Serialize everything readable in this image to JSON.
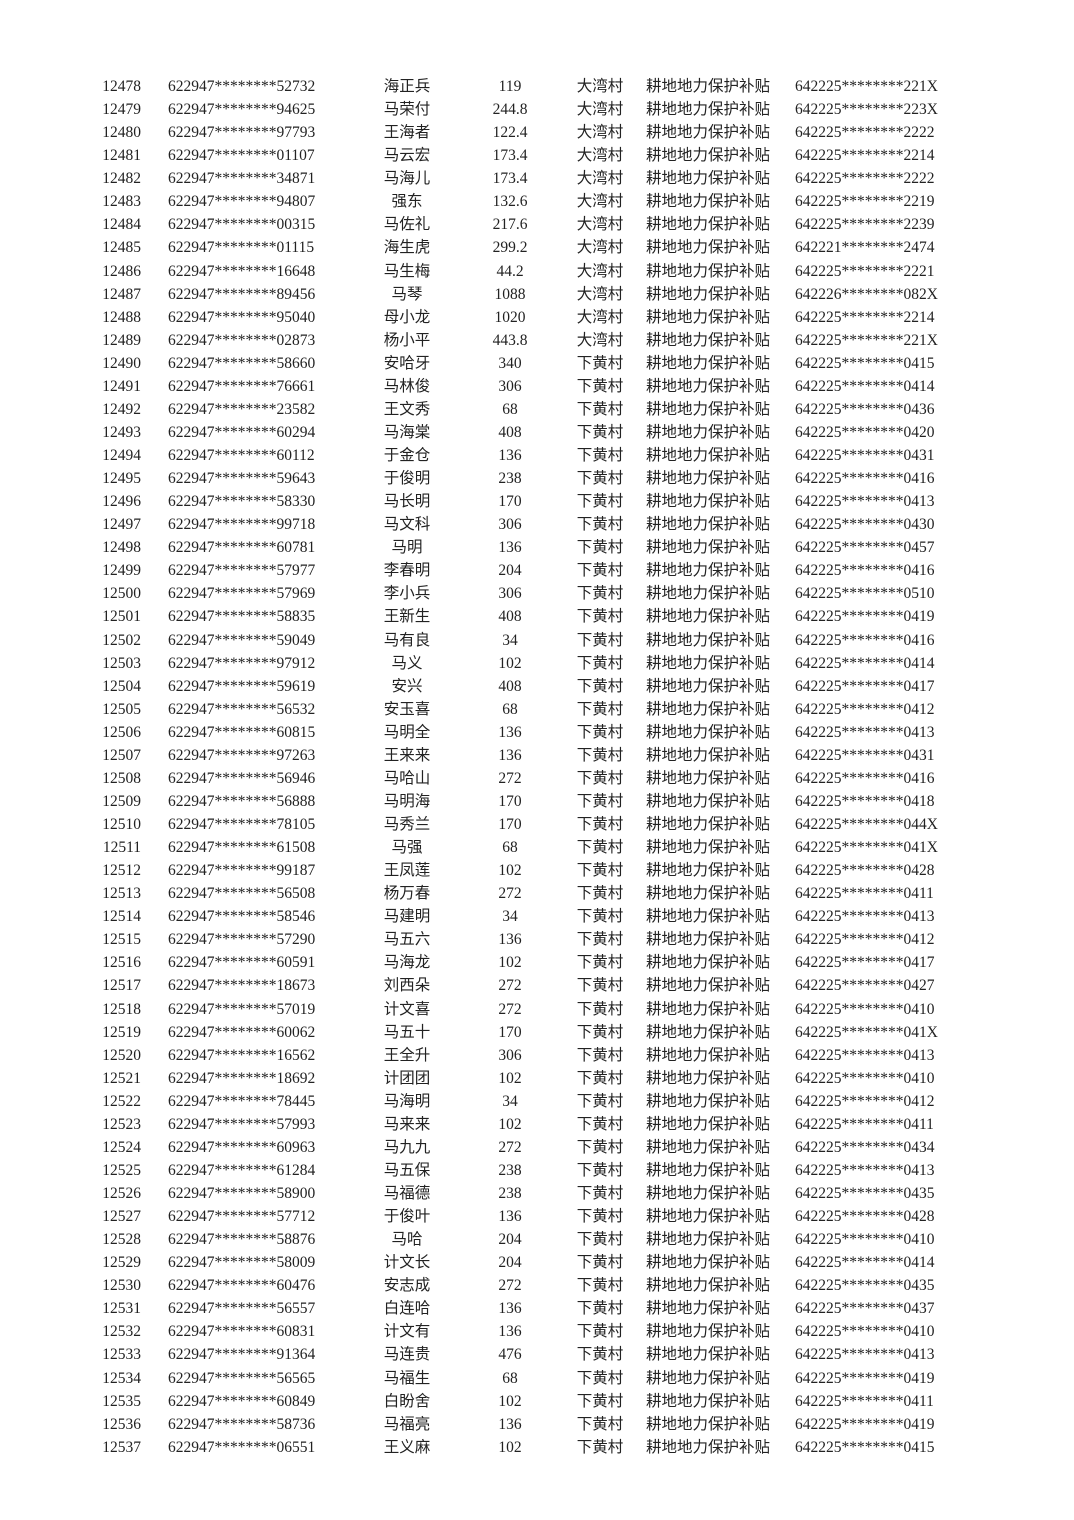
{
  "page": {
    "type": "subsidy-payment-list-document",
    "colors": {
      "background": "#ffffff",
      "text": "#222222"
    }
  },
  "table": {
    "columns": [
      {
        "key": 0,
        "name": "sequence-number",
        "class": "c0"
      },
      {
        "key": 1,
        "name": "citizen-id-masked",
        "class": "c1"
      },
      {
        "key": 2,
        "name": "person-name",
        "class": "c2"
      },
      {
        "key": 3,
        "name": "subsidy-amount",
        "class": "c3"
      },
      {
        "key": 4,
        "name": "village-name",
        "class": "c4"
      },
      {
        "key": 5,
        "name": "subsidy-type",
        "class": "c5"
      },
      {
        "key": 6,
        "name": "account-id-masked",
        "class": "c6"
      }
    ],
    "rows": [
      [
        12478,
        "622947********52732",
        "海正兵",
        119,
        "大湾村",
        "耕地地力保护补贴",
        "642225********221X"
      ],
      [
        12479,
        "622947********94625",
        "马荣付",
        244.8,
        "大湾村",
        "耕地地力保护补贴",
        "642225********223X"
      ],
      [
        12480,
        "622947********97793",
        "王海者",
        122.4,
        "大湾村",
        "耕地地力保护补贴",
        "642225********2222"
      ],
      [
        12481,
        "622947********01107",
        "马云宏",
        173.4,
        "大湾村",
        "耕地地力保护补贴",
        "642225********2214"
      ],
      [
        12482,
        "622947********34871",
        "马海儿",
        173.4,
        "大湾村",
        "耕地地力保护补贴",
        "642225********2222"
      ],
      [
        12483,
        "622947********94807",
        "强东",
        132.6,
        "大湾村",
        "耕地地力保护补贴",
        "642225********2219"
      ],
      [
        12484,
        "622947********00315",
        "马佐礼",
        217.6,
        "大湾村",
        "耕地地力保护补贴",
        "642225********2239"
      ],
      [
        12485,
        "622947********01115",
        "海生虎",
        299.2,
        "大湾村",
        "耕地地力保护补贴",
        "642221********2474"
      ],
      [
        12486,
        "622947********16648",
        "马生梅",
        44.2,
        "大湾村",
        "耕地地力保护补贴",
        "642225********2221"
      ],
      [
        12487,
        "622947********89456",
        "马琴",
        1088,
        "大湾村",
        "耕地地力保护补贴",
        "642226********082X"
      ],
      [
        12488,
        "622947********95040",
        "母小龙",
        1020,
        "大湾村",
        "耕地地力保护补贴",
        "642225********2214"
      ],
      [
        12489,
        "622947********02873",
        "杨小平",
        443.8,
        "大湾村",
        "耕地地力保护补贴",
        "642225********221X"
      ],
      [
        12490,
        "622947********58660",
        "安哈牙",
        340,
        "下黄村",
        "耕地地力保护补贴",
        "642225********0415"
      ],
      [
        12491,
        "622947********76661",
        "马林俊",
        306,
        "下黄村",
        "耕地地力保护补贴",
        "642225********0414"
      ],
      [
        12492,
        "622947********23582",
        "王文秀",
        68,
        "下黄村",
        "耕地地力保护补贴",
        "642225********0436"
      ],
      [
        12493,
        "622947********60294",
        "马海棠",
        408,
        "下黄村",
        "耕地地力保护补贴",
        "642225********0420"
      ],
      [
        12494,
        "622947********60112",
        "于金仓",
        136,
        "下黄村",
        "耕地地力保护补贴",
        "642225********0431"
      ],
      [
        12495,
        "622947********59643",
        "于俊明",
        238,
        "下黄村",
        "耕地地力保护补贴",
        "642225********0416"
      ],
      [
        12496,
        "622947********58330",
        "马长明",
        170,
        "下黄村",
        "耕地地力保护补贴",
        "642225********0413"
      ],
      [
        12497,
        "622947********99718",
        "马文科",
        306,
        "下黄村",
        "耕地地力保护补贴",
        "642225********0430"
      ],
      [
        12498,
        "622947********60781",
        "马明",
        136,
        "下黄村",
        "耕地地力保护补贴",
        "642225********0457"
      ],
      [
        12499,
        "622947********57977",
        "李春明",
        204,
        "下黄村",
        "耕地地力保护补贴",
        "642225********0416"
      ],
      [
        12500,
        "622947********57969",
        "李小兵",
        306,
        "下黄村",
        "耕地地力保护补贴",
        "642225********0510"
      ],
      [
        12501,
        "622947********58835",
        "王新生",
        408,
        "下黄村",
        "耕地地力保护补贴",
        "642225********0419"
      ],
      [
        12502,
        "622947********59049",
        "马有良",
        34,
        "下黄村",
        "耕地地力保护补贴",
        "642225********0416"
      ],
      [
        12503,
        "622947********97912",
        "马义",
        102,
        "下黄村",
        "耕地地力保护补贴",
        "642225********0414"
      ],
      [
        12504,
        "622947********59619",
        "安兴",
        408,
        "下黄村",
        "耕地地力保护补贴",
        "642225********0417"
      ],
      [
        12505,
        "622947********56532",
        "安玉喜",
        68,
        "下黄村",
        "耕地地力保护补贴",
        "642225********0412"
      ],
      [
        12506,
        "622947********60815",
        "马明全",
        136,
        "下黄村",
        "耕地地力保护补贴",
        "642225********0413"
      ],
      [
        12507,
        "622947********97263",
        "王来来",
        136,
        "下黄村",
        "耕地地力保护补贴",
        "642225********0431"
      ],
      [
        12508,
        "622947********56946",
        "马哈山",
        272,
        "下黄村",
        "耕地地力保护补贴",
        "642225********0416"
      ],
      [
        12509,
        "622947********56888",
        "马明海",
        170,
        "下黄村",
        "耕地地力保护补贴",
        "642225********0418"
      ],
      [
        12510,
        "622947********78105",
        "马秀兰",
        170,
        "下黄村",
        "耕地地力保护补贴",
        "642225********044X"
      ],
      [
        12511,
        "622947********61508",
        "马强",
        68,
        "下黄村",
        "耕地地力保护补贴",
        "642225********041X"
      ],
      [
        12512,
        "622947********99187",
        "王凤莲",
        102,
        "下黄村",
        "耕地地力保护补贴",
        "642225********0428"
      ],
      [
        12513,
        "622947********56508",
        "杨万春",
        272,
        "下黄村",
        "耕地地力保护补贴",
        "642225********0411"
      ],
      [
        12514,
        "622947********58546",
        "马建明",
        34,
        "下黄村",
        "耕地地力保护补贴",
        "642225********0413"
      ],
      [
        12515,
        "622947********57290",
        "马五六",
        136,
        "下黄村",
        "耕地地力保护补贴",
        "642225********0412"
      ],
      [
        12516,
        "622947********60591",
        "马海龙",
        102,
        "下黄村",
        "耕地地力保护补贴",
        "642225********0417"
      ],
      [
        12517,
        "622947********18673",
        "刘西朵",
        272,
        "下黄村",
        "耕地地力保护补贴",
        "642225********0427"
      ],
      [
        12518,
        "622947********57019",
        "计文喜",
        272,
        "下黄村",
        "耕地地力保护补贴",
        "642225********0410"
      ],
      [
        12519,
        "622947********60062",
        "马五十",
        170,
        "下黄村",
        "耕地地力保护补贴",
        "642225********041X"
      ],
      [
        12520,
        "622947********16562",
        "王全升",
        306,
        "下黄村",
        "耕地地力保护补贴",
        "642225********0413"
      ],
      [
        12521,
        "622947********18692",
        "计团团",
        102,
        "下黄村",
        "耕地地力保护补贴",
        "642225********0410"
      ],
      [
        12522,
        "622947********78445",
        "马海明",
        34,
        "下黄村",
        "耕地地力保护补贴",
        "642225********0412"
      ],
      [
        12523,
        "622947********57993",
        "马来来",
        102,
        "下黄村",
        "耕地地力保护补贴",
        "642225********0411"
      ],
      [
        12524,
        "622947********60963",
        "马九九",
        272,
        "下黄村",
        "耕地地力保护补贴",
        "642225********0434"
      ],
      [
        12525,
        "622947********61284",
        "马五保",
        238,
        "下黄村",
        "耕地地力保护补贴",
        "642225********0413"
      ],
      [
        12526,
        "622947********58900",
        "马福德",
        238,
        "下黄村",
        "耕地地力保护补贴",
        "642225********0435"
      ],
      [
        12527,
        "622947********57712",
        "于俊叶",
        136,
        "下黄村",
        "耕地地力保护补贴",
        "642225********0428"
      ],
      [
        12528,
        "622947********58876",
        "马哈",
        204,
        "下黄村",
        "耕地地力保护补贴",
        "642225********0410"
      ],
      [
        12529,
        "622947********58009",
        "计文长",
        204,
        "下黄村",
        "耕地地力保护补贴",
        "642225********0414"
      ],
      [
        12530,
        "622947********60476",
        "安志成",
        272,
        "下黄村",
        "耕地地力保护补贴",
        "642225********0435"
      ],
      [
        12531,
        "622947********56557",
        "白连哈",
        136,
        "下黄村",
        "耕地地力保护补贴",
        "642225********0437"
      ],
      [
        12532,
        "622947********60831",
        "计文有",
        136,
        "下黄村",
        "耕地地力保护补贴",
        "642225********0410"
      ],
      [
        12533,
        "622947********91364",
        "马连贵",
        476,
        "下黄村",
        "耕地地力保护补贴",
        "642225********0413"
      ],
      [
        12534,
        "622947********56565",
        "马福生",
        68,
        "下黄村",
        "耕地地力保护补贴",
        "642225********0419"
      ],
      [
        12535,
        "622947********60849",
        "白盼舍",
        102,
        "下黄村",
        "耕地地力保护补贴",
        "642225********0411"
      ],
      [
        12536,
        "622947********58736",
        "马福亮",
        136,
        "下黄村",
        "耕地地力保护补贴",
        "642225********0419"
      ],
      [
        12537,
        "622947********06551",
        "王义麻",
        102,
        "下黄村",
        "耕地地力保护补贴",
        "642225********0415"
      ]
    ]
  }
}
